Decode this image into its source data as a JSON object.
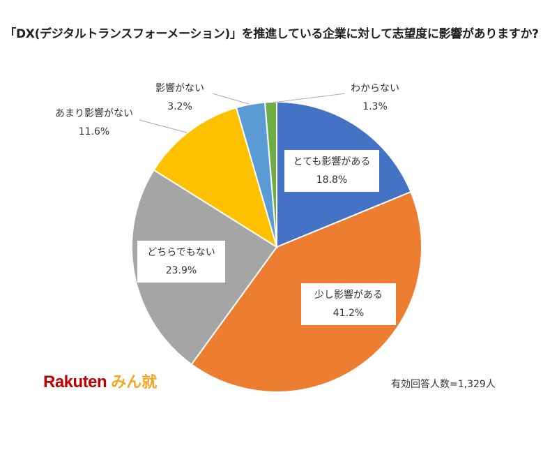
{
  "chart_data": {
    "type": "pie",
    "title": "「DX(デジタルトランスフォーメーション)」を推進している企業に対して志望度に影響がありますか?",
    "start": "12 o'clock, clockwise",
    "slices": [
      {
        "label": "とても影響がある",
        "value": 18.8,
        "value_text": "18.8%",
        "color": "#4472C4"
      },
      {
        "label": "少し影響がある",
        "value": 41.2,
        "value_text": "41.2%",
        "color": "#ED7D31"
      },
      {
        "label": "どちらでもない",
        "value": 23.9,
        "value_text": "23.9%",
        "color": "#A5A5A5"
      },
      {
        "label": "あまり影響がない",
        "value": 11.6,
        "value_text": "11.6%",
        "color": "#FFC000"
      },
      {
        "label": "影響がない",
        "value": 3.2,
        "value_text": "3.2%",
        "color": "#5B9BD5"
      },
      {
        "label": "わからない",
        "value": 1.3,
        "value_text": "1.3%",
        "color": "#70AD47"
      }
    ]
  },
  "logo": {
    "brand": "Rakuten",
    "sub": "みん就"
  },
  "note": "有効回答人数=1,329人"
}
